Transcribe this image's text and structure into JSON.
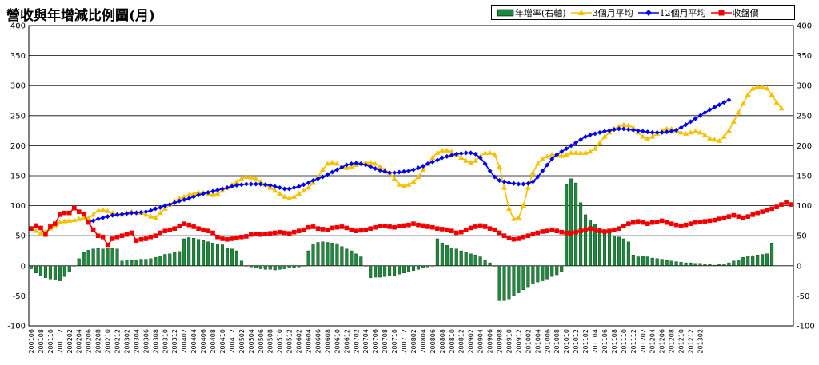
{
  "chart_data": {
    "type": "bar+line",
    "title": "營收與年增減比例圖(月)",
    "legend": {
      "placement": "top-right",
      "entries": [
        {
          "name": "年增率(右軸)",
          "marker": "bar",
          "color": "#1b8a3a"
        },
        {
          "name": "3個月平均",
          "marker": "triangle",
          "color": "#f5c000"
        },
        {
          "name": "12個月平均",
          "marker": "diamond",
          "color": "#0000ee"
        },
        {
          "name": "收盤價",
          "marker": "square",
          "color": "#ee0000"
        }
      ]
    },
    "y_left": {
      "min": -100,
      "max": 400,
      "step": 50,
      "ticks": [
        "-100",
        "-50",
        "0",
        "50",
        "100",
        "150",
        "200",
        "250",
        "300",
        "350",
        "400"
      ]
    },
    "y_right": {
      "min": -100,
      "max": 400,
      "step": 50,
      "ticks": [
        "-100",
        "-50",
        "0",
        "50",
        "100",
        "150",
        "200",
        "250",
        "300",
        "350",
        "400"
      ]
    },
    "grid": true,
    "x_start": {
      "year": 2001,
      "month": 6
    },
    "x_labels": [
      "200106",
      "200108",
      "200110",
      "200112",
      "200202",
      "200204",
      "200206",
      "200208",
      "200210",
      "200212",
      "200302",
      "200304",
      "200306",
      "200308",
      "200310",
      "200312",
      "200402",
      "200404",
      "200406",
      "200408",
      "200410",
      "200412",
      "200502",
      "200504",
      "200506",
      "200508",
      "200510",
      "200512",
      "200602",
      "200604",
      "200606",
      "200608",
      "200610",
      "200612",
      "200702",
      "200704",
      "200706",
      "200708",
      "200710",
      "200712",
      "200802",
      "200804",
      "200806",
      "200808",
      "200810",
      "200812",
      "200902",
      "200904",
      "200906",
      "200908",
      "200910",
      "200912",
      "201002",
      "201004",
      "201006",
      "201008",
      "201010",
      "201012",
      "201102",
      "201104",
      "201106",
      "201108",
      "201110",
      "201112",
      "201202",
      "201204",
      "201206",
      "201208",
      "201210",
      "201212",
      "201302"
    ],
    "series": [
      {
        "name": "年增率(右軸)",
        "kind": "bar",
        "color": "#1b8a3a",
        "values": [
          -5,
          -12,
          -17,
          -20,
          -22,
          -24,
          -25,
          -18,
          -10,
          0,
          12,
          22,
          26,
          28,
          29,
          28,
          30,
          29,
          28,
          8,
          10,
          9,
          10,
          11,
          11,
          12,
          14,
          16,
          19,
          20,
          22,
          24,
          45,
          47,
          46,
          44,
          42,
          40,
          38,
          36,
          35,
          30,
          28,
          25,
          8,
          0,
          -2,
          -4,
          -5,
          -6,
          -6,
          -7,
          -6,
          -5,
          -4,
          -3,
          -2,
          0,
          25,
          36,
          39,
          40,
          39,
          38,
          37,
          32,
          28,
          25,
          20,
          15,
          0,
          -20,
          -19,
          -19,
          -18,
          -17,
          -16,
          -14,
          -12,
          -10,
          -8,
          -6,
          -4,
          -2,
          0,
          45,
          38,
          34,
          30,
          28,
          25,
          22,
          20,
          18,
          15,
          10,
          5,
          0,
          -58,
          -58,
          -55,
          -50,
          -45,
          -40,
          -35,
          -30,
          -27,
          -25,
          -22,
          -18,
          -15,
          -10,
          135,
          145,
          138,
          105,
          85,
          75,
          70,
          62,
          58,
          55,
          50,
          48,
          45,
          40,
          18,
          15,
          16,
          15,
          13,
          12,
          11,
          9,
          8,
          7,
          6,
          5,
          5,
          4,
          4,
          3,
          2,
          1,
          2,
          3,
          5,
          8,
          10,
          14,
          16,
          17,
          18,
          19,
          20,
          38
        ]
      },
      {
        "name": "3個月平均",
        "kind": "line",
        "color": "#f5c000",
        "marker": "triangle",
        "values": [
          62,
          58,
          55,
          57,
          62,
          67,
          72,
          74,
          75,
          76,
          78,
          80,
          80,
          85,
          92,
          93,
          91,
          88,
          86,
          85,
          88,
          90,
          89,
          88,
          85,
          82,
          80,
          88,
          95,
          102,
          108,
          112,
          115,
          118,
          120,
          122,
          122,
          120,
          118,
          120,
          125,
          130,
          135,
          140,
          145,
          148,
          147,
          145,
          140,
          135,
          130,
          125,
          120,
          115,
          112,
          115,
          120,
          125,
          130,
          138,
          148,
          160,
          170,
          172,
          170,
          165,
          163,
          165,
          168,
          170,
          172,
          172,
          170,
          165,
          160,
          155,
          145,
          135,
          133,
          135,
          140,
          148,
          160,
          170,
          180,
          188,
          192,
          192,
          190,
          185,
          180,
          175,
          172,
          175,
          182,
          188,
          188,
          185,
          165,
          130,
          95,
          78,
          80,
          100,
          130,
          155,
          170,
          178,
          182,
          185,
          185,
          183,
          185,
          188,
          188,
          188,
          188,
          190,
          195,
          205,
          215,
          222,
          228,
          232,
          235,
          234,
          230,
          222,
          215,
          212,
          215,
          220,
          225,
          228,
          228,
          225,
          222,
          220,
          222,
          224,
          222,
          218,
          212,
          210,
          208,
          215,
          225,
          240,
          255,
          270,
          285,
          295,
          298,
          298,
          295,
          285,
          272,
          262
        ]
      },
      {
        "name": "12個月平均",
        "kind": "line",
        "color": "#0000ee",
        "marker": "diamond",
        "values": [
          null,
          null,
          null,
          null,
          null,
          null,
          null,
          null,
          null,
          null,
          null,
          null,
          72,
          75,
          78,
          80,
          82,
          84,
          85,
          86,
          87,
          88,
          88,
          89,
          90,
          92,
          95,
          97,
          100,
          102,
          105,
          108,
          110,
          112,
          115,
          118,
          120,
          122,
          124,
          126,
          128,
          130,
          132,
          134,
          135,
          136,
          136,
          136,
          136,
          135,
          134,
          132,
          130,
          128,
          128,
          130,
          132,
          135,
          138,
          142,
          145,
          148,
          152,
          156,
          160,
          164,
          168,
          170,
          171,
          170,
          168,
          165,
          162,
          159,
          157,
          155,
          155,
          156,
          157,
          158,
          160,
          163,
          166,
          170,
          173,
          176,
          180,
          182,
          184,
          186,
          187,
          188,
          188,
          186,
          180,
          170,
          158,
          148,
          142,
          140,
          138,
          137,
          136,
          136,
          137,
          140,
          148,
          158,
          168,
          178,
          185,
          190,
          195,
          200,
          205,
          210,
          215,
          218,
          220,
          222,
          224,
          225,
          227,
          228,
          228,
          227,
          226,
          225,
          224,
          223,
          222,
          222,
          222,
          223,
          224,
          226,
          230,
          235,
          240,
          245,
          250,
          255,
          260,
          264,
          268,
          272,
          276
        ]
      },
      {
        "name": "收盤價",
        "kind": "line",
        "color": "#ee0000",
        "marker": "square",
        "values": [
          62,
          67,
          63,
          52,
          65,
          70,
          85,
          88,
          88,
          96,
          90,
          86,
          72,
          60,
          50,
          48,
          35,
          45,
          48,
          50,
          52,
          55,
          42,
          44,
          45,
          48,
          50,
          55,
          58,
          60,
          62,
          66,
          70,
          68,
          65,
          62,
          60,
          58,
          55,
          48,
          45,
          44,
          45,
          47,
          48,
          49,
          52,
          53,
          52,
          53,
          54,
          55,
          56,
          55,
          54,
          56,
          58,
          60,
          64,
          65,
          62,
          61,
          60,
          63,
          64,
          65,
          63,
          60,
          58,
          59,
          60,
          62,
          64,
          66,
          66,
          65,
          64,
          66,
          67,
          68,
          70,
          68,
          67,
          65,
          64,
          62,
          61,
          60,
          58,
          55,
          56,
          60,
          63,
          65,
          67,
          65,
          62,
          60,
          55,
          50,
          46,
          44,
          45,
          48,
          50,
          53,
          55,
          57,
          58,
          60,
          58,
          56,
          55,
          54,
          56,
          58,
          60,
          62,
          60,
          58,
          57,
          58,
          60,
          62,
          66,
          70,
          72,
          74,
          72,
          70,
          72,
          73,
          75,
          72,
          70,
          68,
          66,
          68,
          70,
          72,
          73,
          74,
          75,
          76,
          78,
          80,
          82,
          84,
          82,
          80,
          82,
          85,
          88,
          90,
          92,
          95,
          98,
          102,
          105,
          102
        ]
      }
    ]
  }
}
